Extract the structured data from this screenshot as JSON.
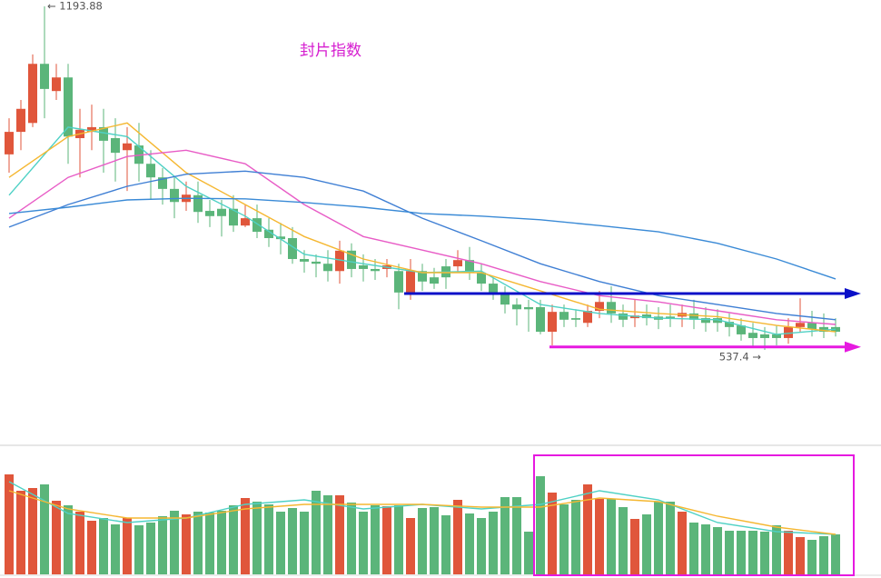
{
  "chart_data": {
    "type": "candlestick",
    "title": "封片指数",
    "open": [
      911,
      954,
      971,
      1084,
      1032,
      1058,
      942,
      954,
      963,
      942,
      919,
      928,
      893,
      867,
      845,
      820,
      833,
      803,
      807,
      807,
      775,
      789,
      767,
      754,
      751,
      711,
      706,
      702,
      688,
      727,
      699,
      692,
      692,
      688,
      647,
      688,
      676,
      697,
      697,
      709,
      685,
      664,
      647,
      624,
      619,
      619,
      572,
      610,
      598,
      589,
      612,
      629,
      607,
      598,
      605,
      601,
      601,
      601,
      607,
      598,
      598,
      591,
      584,
      570,
      567,
      567,
      560,
      581,
      589,
      581,
      581
    ],
    "high": [
      980,
      1015,
      1102,
      1193.88,
      1084,
      1084,
      998,
      1006,
      998,
      980,
      963,
      971,
      919,
      885,
      867,
      859,
      859,
      824,
      824,
      833,
      815,
      815,
      789,
      780,
      772,
      728,
      720,
      728,
      746,
      741,
      720,
      711,
      711,
      702,
      711,
      702,
      694,
      711,
      728,
      734,
      702,
      676,
      659,
      636,
      633,
      633,
      624,
      624,
      615,
      624,
      650,
      659,
      624,
      633,
      624,
      619,
      624,
      624,
      633,
      619,
      615,
      607,
      598,
      589,
      581,
      584,
      598,
      636,
      612,
      607,
      598
    ],
    "low": [
      876,
      919,
      963,
      980,
      1015,
      893,
      867,
      919,
      876,
      859,
      841,
      859,
      824,
      815,
      789,
      803,
      780,
      772,
      754,
      763,
      772,
      751,
      734,
      720,
      702,
      685,
      676,
      668,
      664,
      676,
      668,
      671,
      676,
      615,
      633,
      650,
      654,
      654,
      685,
      671,
      650,
      633,
      607,
      584,
      572,
      567,
      546,
      581,
      581,
      581,
      598,
      589,
      581,
      581,
      584,
      577,
      581,
      581,
      577,
      572,
      572,
      563,
      555,
      542,
      537.4,
      546,
      549,
      572,
      563,
      560,
      563
    ],
    "close": [
      954,
      998,
      1084,
      1036,
      1058,
      945,
      958,
      963,
      937,
      914,
      932,
      893,
      867,
      845,
      820,
      834,
      801,
      793,
      793,
      775,
      789,
      763,
      751,
      749,
      711,
      706,
      702,
      688,
      727,
      692,
      692,
      688,
      699,
      647,
      688,
      668,
      664,
      676,
      709,
      685,
      664,
      647,
      624,
      615,
      615,
      572,
      610,
      595,
      595,
      612,
      629,
      607,
      595,
      603,
      598,
      595,
      598,
      608,
      595,
      589,
      589,
      581,
      567,
      560,
      560,
      560,
      581,
      589,
      577,
      572,
      572
    ],
    "up_color": "#e0563b",
    "down_color": "#5bb57a",
    "ylim": [
      355,
      1206
    ],
    "ma_series": [
      {
        "color": "#4fd1c5",
        "values": [
          833,
          963,
          945,
          850,
          793,
          720,
          702,
          685,
          688,
          624,
          607,
          598,
          595,
          567,
          577
        ]
      },
      {
        "color": "#f5b731",
        "values": [
          867,
          945,
          971,
          876,
          815,
          754,
          711,
          685,
          685,
          650,
          615,
          607,
          601,
          584,
          572
        ]
      },
      {
        "color": "#e85cc6",
        "values": [
          789,
          867,
          907,
          919,
          893,
          815,
          754,
          728,
          702,
          668,
          641,
          629,
          612,
          595,
          586
        ]
      },
      {
        "color": "#3f7fd4",
        "values": [
          772,
          815,
          850,
          873,
          879,
          867,
          841,
          789,
          746,
          702,
          668,
          641,
          624,
          607,
          595
        ]
      },
      {
        "color": "#3a8ad6",
        "values": [
          798,
          810,
          824,
          827,
          826,
          819,
          810,
          798,
          793,
          786,
          775,
          763,
          741,
          711,
          673
        ]
      }
    ],
    "levels": [
      {
        "value": 645,
        "color": "#0a10c8"
      },
      {
        "value": 543,
        "color": "#e619e0"
      }
    ],
    "annotations": [
      "← 1193.88",
      "537.4 →"
    ],
    "volume": {
      "ylim": [
        0,
        142
      ],
      "values": [
        110,
        92,
        95,
        99,
        81,
        76,
        69,
        59,
        62,
        55,
        62,
        54,
        57,
        64,
        70,
        66,
        69,
        68,
        70,
        76,
        84,
        80,
        77,
        69,
        73,
        69,
        92,
        87,
        87,
        79,
        69,
        76,
        75,
        76,
        62,
        73,
        74,
        65,
        82,
        67,
        62,
        69,
        85,
        85,
        47,
        108,
        90,
        77,
        82,
        99,
        83,
        83,
        74,
        61,
        66,
        80,
        80,
        69,
        57,
        55,
        52,
        48,
        48,
        48,
        47,
        54,
        48,
        41,
        38,
        42,
        44
      ],
      "ma_series": [
        {
          "color": "#4fd1c5",
          "values": [
            102,
            67,
            57,
            62,
            77,
            82,
            72,
            77,
            72,
            77,
            92,
            82,
            57,
            47,
            44
          ]
        },
        {
          "color": "#f5b731",
          "values": [
            92,
            72,
            62,
            62,
            72,
            77,
            77,
            77,
            74,
            74,
            84,
            80,
            64,
            52,
            44
          ]
        }
      ]
    }
  }
}
